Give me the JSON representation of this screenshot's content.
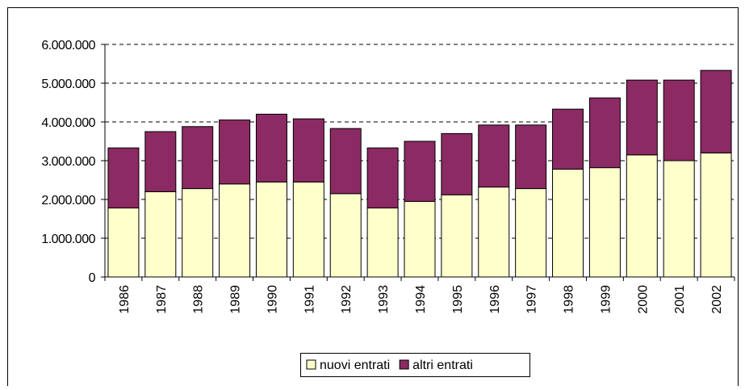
{
  "chart_data": {
    "type": "stacked-bar",
    "categories": [
      "1986",
      "1987",
      "1988",
      "1989",
      "1990",
      "1991",
      "1992",
      "1993",
      "1994",
      "1995",
      "1996",
      "1997",
      "1998",
      "1999",
      "2000",
      "2001",
      "2002"
    ],
    "series": [
      {
        "name": "nuovi entrati",
        "color": "#ffffcc",
        "values": [
          1780000,
          2200000,
          2280000,
          2400000,
          2450000,
          2450000,
          2150000,
          1780000,
          1950000,
          2120000,
          2320000,
          2280000,
          2780000,
          2820000,
          3150000,
          3000000,
          3200000
        ]
      },
      {
        "name": "altri entrati",
        "color": "#8c2a63",
        "values": [
          1550000,
          1550000,
          1600000,
          1650000,
          1750000,
          1630000,
          1680000,
          1550000,
          1550000,
          1580000,
          1600000,
          1640000,
          1550000,
          1800000,
          1930000,
          2080000,
          2130000
        ]
      }
    ],
    "ylim": [
      0,
      6000000
    ],
    "yticks": [
      0,
      {
        "value": 1000000,
        "label": "1.000.000"
      },
      {
        "value": 2000000,
        "label": "2.000.000"
      },
      {
        "value": 3000000,
        "label": "3.000.000"
      },
      {
        "value": 4000000,
        "label": "4.000.000"
      },
      {
        "value": 5000000,
        "label": "5.000.000"
      },
      {
        "value": 6000000,
        "label": "6.000.000"
      }
    ],
    "grid": true,
    "legend": "bottom"
  }
}
